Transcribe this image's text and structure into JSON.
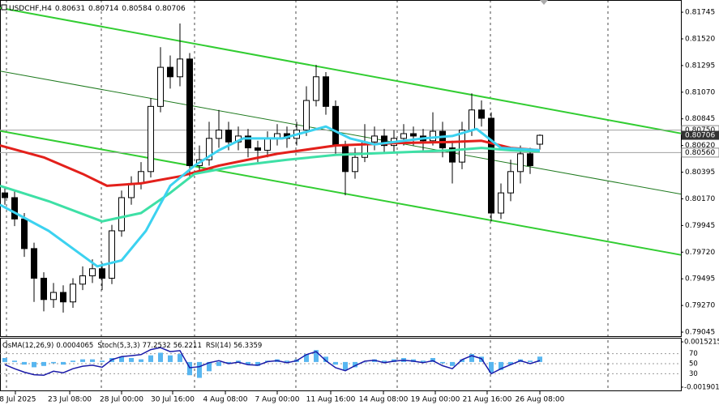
{
  "chart_data": [
    {
      "type": "candlestick",
      "title": "USDCHF,H4",
      "open": [
        0.8022,
        0.8018,
        0.8,
        0.7975,
        0.795,
        0.7932,
        0.7938,
        0.793,
        0.7945,
        0.7952,
        0.7958,
        0.795,
        0.799,
        0.8018,
        0.803,
        0.804,
        0.8095,
        0.8128,
        0.812,
        0.8135,
        0.8045,
        0.805,
        0.8068,
        0.8075,
        0.8065,
        0.807,
        0.806,
        0.8058,
        0.8068,
        0.8072,
        0.8068,
        0.8075,
        0.81,
        0.812,
        0.8095,
        0.8062,
        0.804,
        0.8052,
        0.8065,
        0.807,
        0.8062,
        0.8068,
        0.8072,
        0.807,
        0.8066,
        0.8074,
        0.806,
        0.8048,
        0.8075,
        0.8092,
        0.8085,
        0.8005,
        0.8022,
        0.804,
        0.8055,
        0.80631
      ],
      "high": [
        0.8027,
        0.8024,
        0.8005,
        0.798,
        0.7955,
        0.7946,
        0.7944,
        0.795,
        0.796,
        0.7966,
        0.7963,
        0.7995,
        0.8024,
        0.8036,
        0.8048,
        0.8102,
        0.8145,
        0.8138,
        0.8165,
        0.814,
        0.8062,
        0.8082,
        0.8092,
        0.8082,
        0.8078,
        0.8076,
        0.8066,
        0.8074,
        0.808,
        0.8078,
        0.8082,
        0.8112,
        0.813,
        0.8124,
        0.81,
        0.8066,
        0.806,
        0.808,
        0.8078,
        0.8076,
        0.8075,
        0.808,
        0.8078,
        0.8076,
        0.809,
        0.8082,
        0.8066,
        0.8082,
        0.8106,
        0.81,
        0.809,
        0.803,
        0.805,
        0.8062,
        0.806,
        0.80714
      ],
      "low": [
        0.8012,
        0.7994,
        0.7968,
        0.793,
        0.7922,
        0.7925,
        0.7921,
        0.7925,
        0.794,
        0.7946,
        0.794,
        0.7945,
        0.7985,
        0.8012,
        0.8025,
        0.8035,
        0.809,
        0.811,
        0.8112,
        0.8035,
        0.8038,
        0.8045,
        0.806,
        0.8058,
        0.8058,
        0.8052,
        0.8048,
        0.8052,
        0.8062,
        0.806,
        0.8062,
        0.807,
        0.8095,
        0.8088,
        0.8055,
        0.802,
        0.8034,
        0.8048,
        0.8058,
        0.8055,
        0.8056,
        0.8062,
        0.8062,
        0.8058,
        0.8062,
        0.8052,
        0.803,
        0.8042,
        0.807,
        0.8078,
        0.7998,
        0.8,
        0.8015,
        0.803,
        0.8038,
        0.80584
      ],
      "close": [
        0.8018,
        0.8,
        0.7975,
        0.795,
        0.7932,
        0.7938,
        0.793,
        0.7945,
        0.7952,
        0.7958,
        0.795,
        0.799,
        0.8018,
        0.803,
        0.804,
        0.8095,
        0.8128,
        0.812,
        0.8135,
        0.8045,
        0.805,
        0.8068,
        0.8075,
        0.8065,
        0.807,
        0.806,
        0.8058,
        0.8068,
        0.8072,
        0.8068,
        0.8075,
        0.81,
        0.812,
        0.8095,
        0.8062,
        0.804,
        0.8052,
        0.8065,
        0.807,
        0.8062,
        0.8068,
        0.8072,
        0.807,
        0.8066,
        0.8074,
        0.806,
        0.8048,
        0.8075,
        0.8092,
        0.8085,
        0.8005,
        0.8022,
        0.804,
        0.8055,
        0.8045,
        0.80706
      ],
      "xlim": [
        -0.5,
        69.5
      ],
      "xticks": [
        {
          "value": 1.08,
          "label": "18 Jul 2025"
        },
        {
          "value": 6.67,
          "label": "23 Jul 08:00"
        },
        {
          "value": 12,
          "label": "28 Jul 00:00"
        },
        {
          "value": 17.25,
          "label": "30 Jul 16:00"
        },
        {
          "value": 22.67,
          "label": "4 Aug 08:00"
        },
        {
          "value": 28,
          "label": "7 Aug 00:00"
        },
        {
          "value": 33.5,
          "label": "11 Aug 16:00"
        },
        {
          "value": 38.92,
          "label": "14 Aug 08:00"
        },
        {
          "value": 44.25,
          "label": "19 Aug 00:00"
        },
        {
          "value": 49.58,
          "label": "21 Aug 16:00"
        },
        {
          "value": 55,
          "label": "26 Aug 08:00"
        }
      ],
      "ylim": [
        0.79011,
        0.81848
      ],
      "yticks": [
        0.81745,
        {
          "value": 0.8152,
          "label": "0.81520"
        },
        0.81295,
        {
          "value": 0.8107,
          "label": "0.81070"
        },
        0.80845,
        {
          "value": 0.8062,
          "label": "0.80620"
        },
        0.80395,
        {
          "value": 0.8017,
          "label": "0.80170"
        },
        0.79945,
        {
          "value": 0.7972,
          "label": "0.79720"
        },
        0.79495,
        {
          "value": 0.7927,
          "label": "0.79270"
        },
        0.79045
      ],
      "series": [
        {
          "color": "#e3201b",
          "x": [
            -0.5,
            4,
            8,
            10.5,
            14,
            18,
            22,
            28,
            34,
            40,
            46,
            49,
            52,
            55
          ],
          "values": [
            0.8062,
            0.8052,
            0.8038,
            0.8028,
            0.803,
            0.8036,
            0.8045,
            0.8055,
            0.8062,
            0.8064,
            0.8065,
            0.8066,
            0.806,
            0.8058
          ]
        },
        {
          "color": "#3ee0a6",
          "x": [
            -0.5,
            4.5,
            10,
            14,
            17,
            19.5,
            24,
            29,
            34,
            40,
            46,
            49,
            52,
            55
          ],
          "values": [
            0.8028,
            0.8015,
            0.7998,
            0.8005,
            0.8022,
            0.8038,
            0.8045,
            0.805,
            0.8054,
            0.8056,
            0.8058,
            0.806,
            0.8058,
            0.8057
          ]
        },
        {
          "color": "#3cd2f0",
          "x": [
            -0.5,
            4.5,
            9.5,
            12,
            14.5,
            17,
            19.5,
            22,
            24.5,
            28.5,
            33,
            35.5,
            38,
            43,
            46,
            48.5,
            51,
            55
          ],
          "values": [
            0.8012,
            0.799,
            0.796,
            0.7965,
            0.799,
            0.8028,
            0.8045,
            0.8058,
            0.8068,
            0.8068,
            0.8078,
            0.8068,
            0.8063,
            0.8068,
            0.807,
            0.8076,
            0.806,
            0.8058
          ]
        }
      ],
      "trendlines": [
        {
          "color": "#32cd32",
          "x": [
            -0.5,
            69.5
          ],
          "values": [
            0.81782,
            0.80722
          ]
        },
        {
          "color": "#1f7a1f",
          "x": [
            -0.5,
            69.5
          ],
          "values": [
            0.81248,
            0.8021
          ]
        },
        {
          "color": "#32cd32",
          "x": [
            -0.5,
            69.5
          ],
          "values": [
            0.80743,
            0.79697
          ]
        }
      ],
      "price_lines": [
        {
          "value": 0.8075,
          "label": "0.80750"
        },
        {
          "value": 0.8056,
          "label": "0.80560"
        }
      ]
    },
    {
      "type": "bar",
      "name": "OsMA(12,26,9)",
      "color": "#58b6f0",
      "values": [
        0.0003,
        0.0001,
        -0.0002,
        -0.0004,
        -0.0003,
        -0.0001,
        -0.0002,
        0.0001,
        0.0002,
        0.0002,
        0.0001,
        0.0003,
        0.0004,
        0.0003,
        0.0002,
        0.0005,
        0.0007,
        0.0005,
        0.0006,
        -0.001,
        -0.0012,
        -0.0007,
        -0.0003,
        -0.0001,
        0.0001,
        -0.0002,
        -0.0003,
        0.0001,
        0.0002,
        0.0001,
        0.0002,
        0.0006,
        0.0009,
        0.0004,
        -0.0002,
        -0.0006,
        -0.0004,
        0,
        0.0002,
        0.0001,
        0.0002,
        0.0003,
        0.0002,
        0.0001,
        0.0003,
        -0.0001,
        -0.0003,
        0.0002,
        0.0006,
        0.0004,
        -0.0008,
        -0.0006,
        -0.0002,
        0.0002,
        0.0001,
        0.0004065
      ],
      "ylim": [
        -0.00215,
        0.00177
      ],
      "yticks": [
        0.0015215,
        -0.001901
      ],
      "y2lim": [
        0,
        100
      ],
      "y2ticks": [
        70,
        50,
        30
      ],
      "series": [
        {
          "name": "RSI(14)",
          "color": "#1a1aa8",
          "axis": "y2",
          "values": [
            48,
            40,
            33,
            28,
            27,
            35,
            32,
            40,
            45,
            47,
            43,
            58,
            64,
            66,
            68,
            78,
            82,
            74,
            76,
            42,
            44,
            52,
            56,
            50,
            53,
            48,
            47,
            54,
            56,
            52,
            56,
            68,
            74,
            56,
            42,
            36,
            46,
            55,
            57,
            52,
            55,
            57,
            55,
            52,
            56,
            46,
            40,
            58,
            66,
            60,
            30,
            40,
            48,
            56,
            50,
            56.3359
          ]
        }
      ],
      "stoch": {
        "name": "Stoch(5,3,3)",
        "values": [
          77.2532,
          56.2211
        ]
      }
    }
  ]
}
